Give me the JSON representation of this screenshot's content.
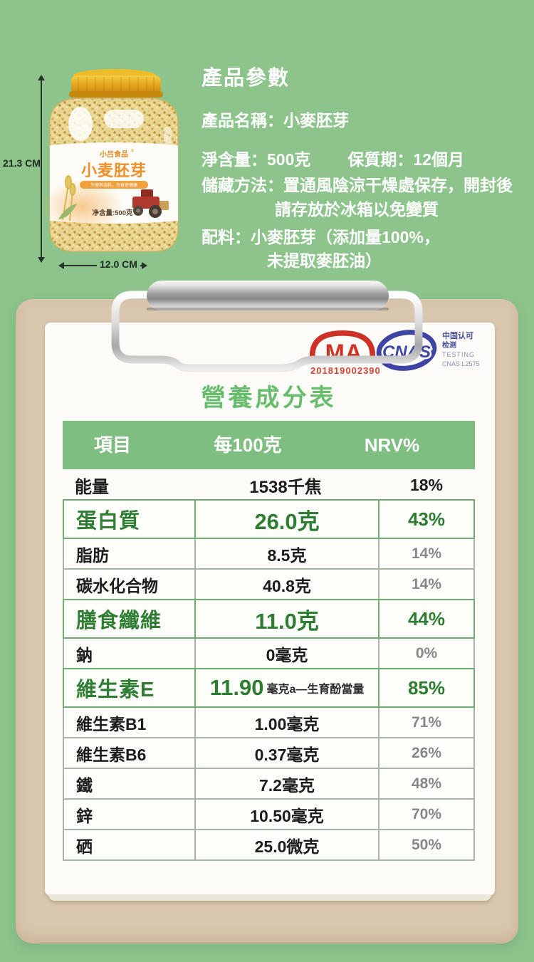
{
  "product_section": {
    "title": "產品參數",
    "name_line": "產品名稱：小麥胚芽",
    "net_weight": "淨含量：500克",
    "shelf_life": "保質期：12個月",
    "storage_line1": "儲藏方法：置通風陰涼干燥處保存，開封後",
    "storage_line2": "請存放於冰箱以免變質",
    "ingredients_line1": "配料：小麥胚芽（添加量100%，",
    "ingredients_line2": "未提取麥胚油）",
    "dim_height": "21.3 CM",
    "dim_width": "12.0 CM",
    "jar": {
      "brand": "小吕食品",
      "reg_mark": "®",
      "name": "小麦胚芽",
      "slogan": "为营养选料，为食者健康",
      "net": "净含量:500克"
    }
  },
  "certification": {
    "cma_text": "MA",
    "cma_number": "201819002390",
    "cnas_text": "CNAS",
    "line1": "中国认可",
    "line2": "检测",
    "line3": "TESTING",
    "line4": "CNAS L2575"
  },
  "nutrition": {
    "title": "營養成分表",
    "columns": [
      "項目",
      "每100克",
      "NRV%"
    ],
    "rows": [
      {
        "item": "能量",
        "value": "1538千焦",
        "nrv": "18%",
        "style": "plain"
      },
      {
        "item": "蛋白質",
        "value": "26.0克",
        "nrv": "43%",
        "style": "hl"
      },
      {
        "item": "脂肪",
        "value": "8.5克",
        "nrv": "14%",
        "style": "normal"
      },
      {
        "item": "碳水化合物",
        "value": "40.8克",
        "nrv": "14%",
        "style": "normal"
      },
      {
        "item": "膳食纖維",
        "value": "11.0克",
        "nrv": "44%",
        "style": "hl"
      },
      {
        "item": "鈉",
        "value": "0毫克",
        "nrv": "0%",
        "style": "normal"
      },
      {
        "item": "維生素E",
        "value": "11.90",
        "value_suffix": "毫克a—生育酚當量",
        "nrv": "85%",
        "style": "hl"
      },
      {
        "item": "維生素B1",
        "value": "1.00毫克",
        "nrv": "71%",
        "style": "normal"
      },
      {
        "item": "維生素B6",
        "value": "0.37毫克",
        "nrv": "26%",
        "style": "normal"
      },
      {
        "item": "鐵",
        "value": "7.2毫克",
        "nrv": "48%",
        "style": "normal"
      },
      {
        "item": "鋅",
        "value": "10.50毫克",
        "nrv": "70%",
        "style": "normal"
      },
      {
        "item": "硒",
        "value": "25.0微克",
        "nrv": "50%",
        "style": "normal"
      }
    ]
  },
  "colors": {
    "page_green": "#8cc48c",
    "header_green": "#7fbe81",
    "highlight_green": "#2e7d32",
    "board_tan": "#d9c6ae",
    "cma_red": "#ce3226",
    "cnas_blue": "#3e44a3"
  }
}
